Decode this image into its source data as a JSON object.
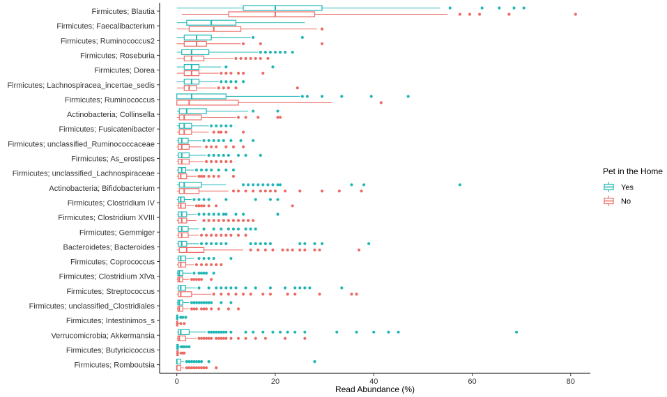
{
  "chart_data": {
    "type": "boxplot-horizontal",
    "xlabel": "Read Abundance (%)",
    "ylabel": "",
    "xlim": [
      -3.5,
      84
    ],
    "xticks": [
      0,
      20,
      40,
      60,
      80
    ],
    "legend": {
      "title": "Pet in the Home",
      "position": "right",
      "entries": [
        {
          "label": "Yes",
          "color": "#1FB5B5"
        },
        {
          "label": "No",
          "color": "#EC6A63"
        }
      ]
    },
    "categories": [
      "Firmicutes; Blautia",
      "Firmicutes; Faecalibacterium",
      "Firmicutes; Ruminococcus2",
      "Firmicutes; Roseburia",
      "Firmicutes; Dorea",
      "Firmicutes; Lachnospiracea_incertae_sedis",
      "Firmicutes; Ruminococcus",
      "Actinobacteria; Collinsella",
      "Firmicutes; Fusicatenibacter",
      "Firmicutes; unclassified_Ruminococcaceae",
      "Firmicutes; As_erostipes",
      "Firmicutes; unclassified_Lachnospiraceae",
      "Actinobacteria; Bifidobacterium",
      "Firmicutes; Clostridium IV",
      "Firmicutes; Clostridium XVIII",
      "Firmicutes; Gemmiger",
      "Bacteroidetes; Bacteroides",
      "Firmicutes; Coprococcus",
      "Firmicutes; Clostridium XlVa",
      "Firmicutes; Streptococcus",
      "Firmicutes; unclassified_Clostridiales",
      "Firmicutes; Intestinimos_s",
      "Verrucomicrobia; Akkermansia",
      "Firmicutes; Butyricicoccus",
      "Firmicutes; Romboutsia"
    ],
    "series": [
      {
        "name": "Yes",
        "color": "#1FB5B5",
        "boxes": [
          {
            "min": 0,
            "q1": 13.5,
            "median": 20,
            "q3": 29.5,
            "max": 53.5,
            "outliers": [
              55.5,
              62,
              65.5,
              68.5,
              70.5
            ]
          },
          {
            "min": 0,
            "q1": 2,
            "median": 7,
            "q3": 12,
            "max": 26,
            "outliers": []
          },
          {
            "min": 0,
            "q1": 1.5,
            "median": 4,
            "q3": 7,
            "max": 15,
            "outliers": [
              15.5,
              25.5
            ]
          },
          {
            "min": 0,
            "q1": 1,
            "median": 3,
            "q3": 6.5,
            "max": 16.5,
            "outliers": [
              17,
              18,
              19,
              20,
              21,
              22,
              23.5
            ]
          },
          {
            "min": 0,
            "q1": 1.5,
            "median": 3,
            "q3": 4.5,
            "max": 9,
            "outliers": [
              10,
              19.5
            ]
          },
          {
            "min": 0,
            "q1": 1.5,
            "median": 3,
            "q3": 4.5,
            "max": 8.5,
            "outliers": [
              9,
              10,
              11,
              12,
              13.5
            ]
          },
          {
            "min": 0,
            "q1": 0,
            "median": 3,
            "q3": 10,
            "max": 25,
            "outliers": [
              25.5,
              26.5,
              29.5,
              33.5,
              39.5,
              47
            ]
          },
          {
            "min": 0,
            "q1": 0.5,
            "median": 2,
            "q3": 6,
            "max": 14.5,
            "outliers": [
              15.5,
              20.5
            ]
          },
          {
            "min": 0,
            "q1": 0.5,
            "median": 1.5,
            "q3": 3,
            "max": 6.5,
            "outliers": [
              7,
              8,
              9,
              10,
              11
            ]
          },
          {
            "min": 0,
            "q1": 0.3,
            "median": 1,
            "q3": 2.3,
            "max": 5,
            "outliers": [
              5.5,
              6.5,
              7.5,
              8.5,
              9.5,
              11,
              13,
              15.5
            ]
          },
          {
            "min": 0,
            "q1": 0.3,
            "median": 1,
            "q3": 2.5,
            "max": 6,
            "outliers": [
              6.5,
              7.5,
              8.5,
              9.5,
              10.5,
              12.5,
              14,
              17
            ]
          },
          {
            "min": 0,
            "q1": 0.3,
            "median": 1,
            "q3": 1.8,
            "max": 3.5,
            "outliers": [
              4,
              5,
              6,
              7,
              8.5,
              10,
              11.5
            ]
          },
          {
            "min": 0,
            "q1": 0.5,
            "median": 1.5,
            "q3": 5,
            "max": 10,
            "outliers": [
              13.5,
              14.5,
              15.5,
              16.5,
              17.5,
              18.5,
              19.5,
              20.5,
              21,
              35.5,
              38,
              57.5
            ]
          },
          {
            "min": 0,
            "q1": 0.3,
            "median": 0.8,
            "q3": 1.5,
            "max": 3,
            "outliers": [
              3.5,
              4.5,
              5.5,
              6.5,
              10,
              16,
              19,
              20.5
            ]
          },
          {
            "min": 0,
            "q1": 0.3,
            "median": 1,
            "q3": 2,
            "max": 4,
            "outliers": [
              4.5,
              5.5,
              6.5,
              7.5,
              8.5,
              9.5,
              10,
              12,
              13.5,
              20.5
            ]
          },
          {
            "min": 0,
            "q1": 0.3,
            "median": 1,
            "q3": 2.3,
            "max": 4.5,
            "outliers": [
              5.5,
              7.5,
              9,
              10.5,
              11.5,
              12.5,
              14,
              15,
              16
            ]
          },
          {
            "min": 0,
            "q1": 0.3,
            "median": 1,
            "q3": 2,
            "max": 4.5,
            "outliers": [
              5,
              6,
              7,
              8,
              9,
              10,
              15,
              16,
              17,
              18,
              19,
              25,
              26,
              28,
              29.5,
              39
            ]
          },
          {
            "min": 0,
            "q1": 0.3,
            "median": 0.8,
            "q3": 1.8,
            "max": 3.5,
            "outliers": [
              4.5,
              5.5,
              6.5,
              7.5,
              11
            ]
          },
          {
            "min": 0,
            "q1": 0.2,
            "median": 0.5,
            "q3": 1.2,
            "max": 3,
            "outliers": [
              3.5,
              4.5,
              5,
              5.5,
              6,
              7.5
            ]
          },
          {
            "min": 0,
            "q1": 0.3,
            "median": 0.8,
            "q3": 1.8,
            "max": 4,
            "outliers": [
              4.5,
              6.5,
              8,
              9,
              10,
              11,
              12,
              14,
              16,
              19,
              22,
              24,
              25,
              26,
              27,
              33.5
            ]
          },
          {
            "min": 0,
            "q1": 0.2,
            "median": 0.5,
            "q3": 1.2,
            "max": 2.5,
            "outliers": [
              3,
              3.5,
              4,
              4.5,
              5,
              5.5,
              6,
              6.5,
              7,
              9,
              11
            ]
          },
          {
            "min": 0,
            "q1": 0,
            "median": 0,
            "q3": 0.2,
            "max": 0.5,
            "outliers": [
              0.8,
              1.2,
              1.8
            ]
          },
          {
            "min": 0,
            "q1": 0.3,
            "median": 0.8,
            "q3": 2.5,
            "max": 6,
            "outliers": [
              6.5,
              7,
              7.5,
              8,
              8.5,
              9,
              9.5,
              10,
              11,
              14,
              15.5,
              17.5,
              19.5,
              21,
              22.5,
              24,
              26,
              32.5,
              36.5,
              40,
              43,
              45,
              69
            ]
          },
          {
            "min": 0,
            "q1": 0,
            "median": 0.1,
            "q3": 0.3,
            "max": 0.6,
            "outliers": [
              0.9,
              1.2,
              1.5,
              2,
              2.5
            ]
          },
          {
            "min": 0,
            "q1": 0,
            "median": 0,
            "q3": 0.8,
            "max": 1.5,
            "outliers": [
              2,
              2.5,
              3,
              3.5,
              4,
              4.5,
              5,
              6.5,
              28
            ]
          }
        ]
      },
      {
        "name": "No",
        "color": "#EC6A63",
        "boxes": [
          {
            "min": 1,
            "q1": 10.5,
            "median": 20,
            "q3": 28,
            "max": 55,
            "outliers": [
              57.5,
              59.5,
              61.5,
              67.5,
              81
            ]
          },
          {
            "min": 0,
            "q1": 2.5,
            "median": 7.5,
            "q3": 13,
            "max": 28.5,
            "outliers": [
              29.5
            ]
          },
          {
            "min": 0,
            "q1": 1.5,
            "median": 4,
            "q3": 6,
            "max": 13,
            "outliers": [
              13.5,
              17,
              29.5
            ]
          },
          {
            "min": 0,
            "q1": 1.5,
            "median": 3,
            "q3": 5.5,
            "max": 11.5,
            "outliers": [
              12,
              13,
              14,
              15,
              16,
              17,
              18.5
            ]
          },
          {
            "min": 0,
            "q1": 1.5,
            "median": 3,
            "q3": 4.5,
            "max": 8.5,
            "outliers": [
              9,
              10,
              11,
              12.5,
              13.5,
              17.5
            ]
          },
          {
            "min": 0,
            "q1": 1.5,
            "median": 2.5,
            "q3": 4,
            "max": 8,
            "outliers": [
              8.5,
              9.5,
              10.5,
              12,
              24.5
            ]
          },
          {
            "min": 0,
            "q1": 0,
            "median": 2.5,
            "q3": 12.5,
            "max": 31.5,
            "outliers": [
              41.5
            ]
          },
          {
            "min": 0,
            "q1": 0.5,
            "median": 1.5,
            "q3": 5,
            "max": 12,
            "outliers": [
              12.5,
              14,
              16.5,
              20.5,
              21
            ]
          },
          {
            "min": 0,
            "q1": 0.5,
            "median": 1.5,
            "q3": 3,
            "max": 6.5,
            "outliers": [
              7.5,
              8.5,
              9,
              10,
              13.5
            ]
          },
          {
            "min": 0,
            "q1": 0.3,
            "median": 1,
            "q3": 2.5,
            "max": 5,
            "outliers": [
              6,
              7,
              8,
              10,
              11.5,
              13.5
            ]
          },
          {
            "min": 0,
            "q1": 0.3,
            "median": 1,
            "q3": 2.5,
            "max": 5.5,
            "outliers": [
              6,
              7,
              8,
              9,
              10,
              11
            ]
          },
          {
            "min": 0,
            "q1": 0.3,
            "median": 0.8,
            "q3": 2,
            "max": 4,
            "outliers": [
              4.5,
              5,
              5.5,
              6.5,
              7.5,
              8.5,
              11.5
            ]
          },
          {
            "min": 0,
            "q1": 0.5,
            "median": 1.5,
            "q3": 4.5,
            "max": 10.5,
            "outliers": [
              11.5,
              12.5,
              14,
              15.5,
              17,
              18,
              19,
              20,
              22,
              25,
              29.5,
              33,
              37.5
            ]
          },
          {
            "min": 0,
            "q1": 0.3,
            "median": 0.8,
            "q3": 1.8,
            "max": 3.5,
            "outliers": [
              4,
              4.5,
              5,
              5.5,
              6.5,
              8,
              23.5
            ]
          },
          {
            "min": 0,
            "q1": 0.3,
            "median": 1,
            "q3": 2,
            "max": 4,
            "outliers": [
              5.5,
              6.5,
              7.5,
              8.5,
              9.5,
              10.5,
              11.5,
              12.5,
              13.5,
              14.5,
              15.5
            ]
          },
          {
            "min": 0,
            "q1": 0.3,
            "median": 1,
            "q3": 2.3,
            "max": 4.5,
            "outliers": [
              5,
              6,
              7,
              8,
              9,
              10,
              11,
              12.5,
              14
            ]
          },
          {
            "min": 0,
            "q1": 0.5,
            "median": 2,
            "q3": 5.5,
            "max": 13.5,
            "outliers": [
              15,
              16.5,
              18,
              19.5,
              21.5,
              22.5,
              23.5,
              25,
              26,
              28,
              29,
              37
            ]
          },
          {
            "min": 0,
            "q1": 0.3,
            "median": 0.8,
            "q3": 1.8,
            "max": 3.5,
            "outliers": [
              4,
              5,
              6,
              7,
              8,
              9
            ]
          },
          {
            "min": 0,
            "q1": 0.2,
            "median": 0.5,
            "q3": 1.2,
            "max": 2.5,
            "outliers": [
              3,
              3.5,
              4,
              4.5,
              5,
              7
            ]
          },
          {
            "min": 0,
            "q1": 0.3,
            "median": 0.8,
            "q3": 3,
            "max": 7,
            "outliers": [
              7.5,
              9,
              10.5,
              12,
              13.5,
              15,
              17.5,
              19,
              22.5,
              24,
              29,
              35.5,
              36.5
            ]
          },
          {
            "min": 0,
            "q1": 0.2,
            "median": 0.5,
            "q3": 1.2,
            "max": 2.5,
            "outliers": [
              3,
              3.5,
              4,
              5,
              5.5,
              6,
              7,
              8.5,
              10.5,
              12.5
            ]
          },
          {
            "min": 0,
            "q1": 0,
            "median": 0,
            "q3": 0.2,
            "max": 0.5,
            "outliers": [
              0.8,
              1.5
            ]
          },
          {
            "min": 0,
            "q1": 0.2,
            "median": 0.5,
            "q3": 1.8,
            "max": 4,
            "outliers": [
              4.5,
              5,
              5.5,
              6,
              6.5,
              7,
              8,
              8.5,
              9,
              9.5,
              10,
              11,
              12.5,
              14,
              16,
              18,
              22,
              26
            ]
          },
          {
            "min": 0,
            "q1": 0,
            "median": 0.1,
            "q3": 0.3,
            "max": 0.6,
            "outliers": [
              0.9,
              1.2,
              1.5
            ]
          },
          {
            "min": 0,
            "q1": 0,
            "median": 0,
            "q3": 0.8,
            "max": 1.5,
            "outliers": [
              2,
              2.5,
              3,
              3.5,
              4,
              4.5,
              5,
              5.5,
              6,
              8
            ]
          }
        ]
      }
    ]
  }
}
